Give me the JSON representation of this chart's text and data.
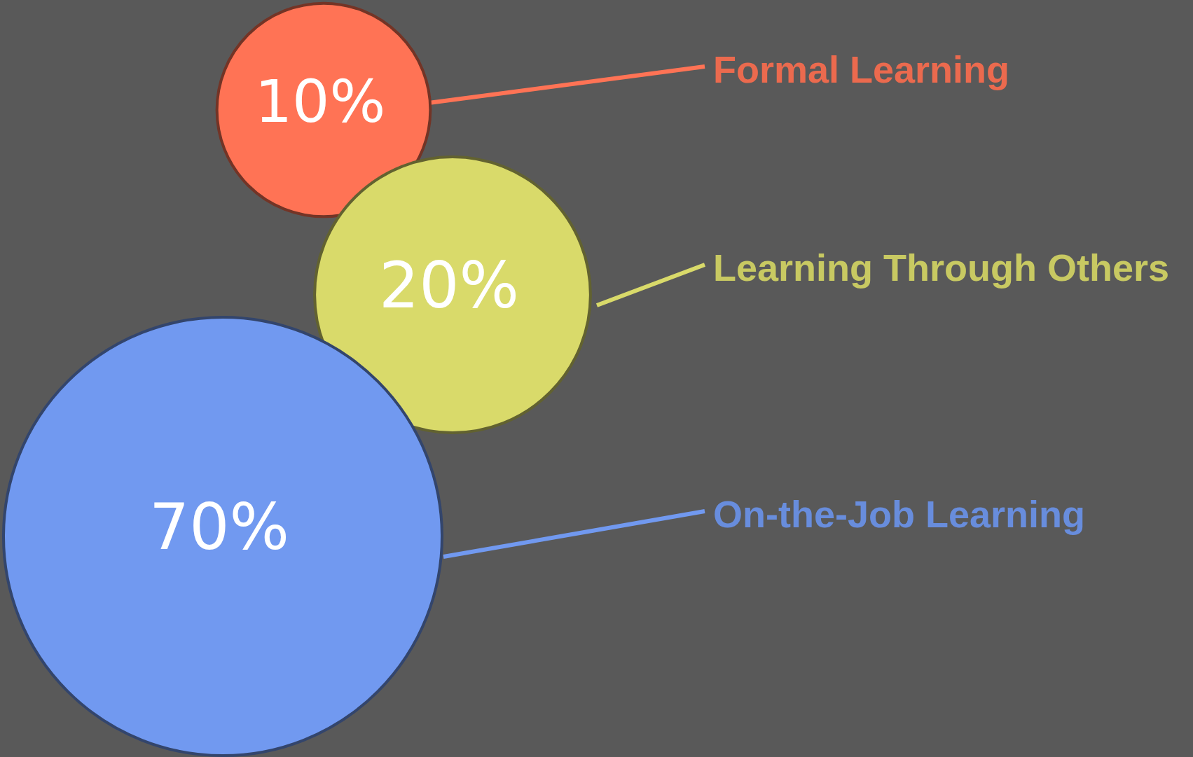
{
  "chart_data": {
    "type": "other",
    "categories": [
      "Formal Learning",
      "Learning Through Others",
      "On-the-Job Learning"
    ],
    "values": [
      10,
      20,
      70
    ],
    "value_labels": [
      "10%",
      "20%",
      "70%"
    ],
    "colors": [
      "#ff7355",
      "#d9da6a",
      "#7199f0"
    ]
  }
}
